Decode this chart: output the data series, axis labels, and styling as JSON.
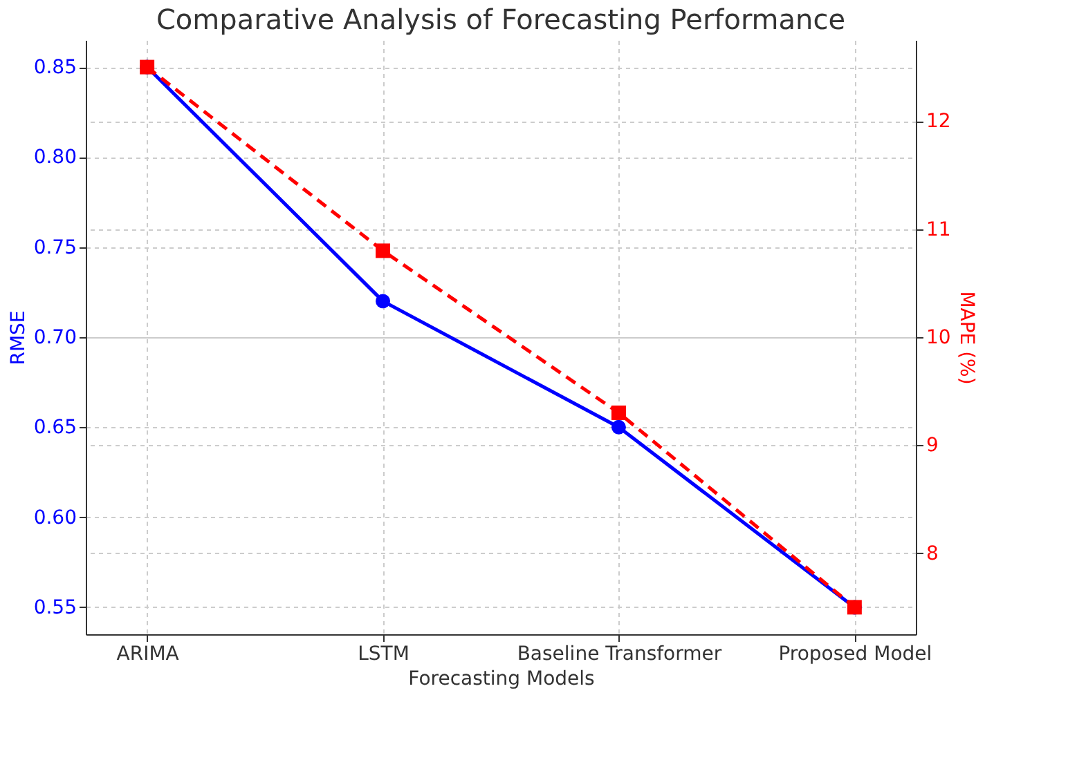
{
  "chart_data": {
    "type": "line",
    "title": "Comparative Analysis of Forecasting Performance",
    "xlabel": "Forecasting Models",
    "ylabel": "RMSE",
    "y2label": "MAPE (%)",
    "categories": [
      "ARIMA",
      "LSTM",
      "Baseline Transformer",
      "Proposed Model"
    ],
    "series": [
      {
        "color": "#0000ff",
        "values": [
          0.85,
          0.72,
          0.65,
          0.55
        ],
        "marker": "circle",
        "line_style": "solid"
      },
      {
        "color": "#ff0000",
        "values": [
          12.5,
          10.8,
          9.3,
          7.5
        ],
        "axis": "y2",
        "marker": "square",
        "line_style": "dashed"
      }
    ],
    "ylim": [
      0.535,
      0.865
    ],
    "yticks": [
      0.55,
      {
        "value": 0.6,
        "label": "0.60"
      },
      0.65,
      {
        "value": 0.7,
        "label": "0.70"
      },
      0.75,
      {
        "value": 0.8,
        "label": "0.80"
      },
      0.85
    ],
    "y2lim": [
      7.25,
      12.75
    ],
    "y2ticks": [
      8,
      9,
      10,
      11,
      12
    ],
    "grid": true
  }
}
